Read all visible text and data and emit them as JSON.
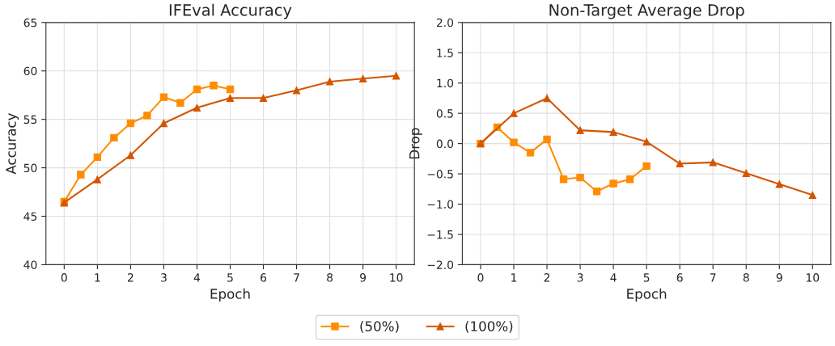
{
  "chart_data": [
    {
      "type": "line",
      "title": "IFEval Accuracy",
      "xlabel": "Epoch",
      "ylabel": "Accuracy",
      "xlim": [
        -0.55,
        10.55
      ],
      "xticks": [
        0,
        1,
        2,
        3,
        4,
        5,
        6,
        7,
        8,
        9,
        10
      ],
      "ylim": [
        40,
        65
      ],
      "yticks": [
        40,
        45,
        50,
        55,
        60,
        65
      ],
      "grid": true,
      "legend": "bottom",
      "series": [
        {
          "name": "(50%)",
          "color": "#ff8c00",
          "marker": "square",
          "x": [
            0,
            0.5,
            1,
            1.5,
            2,
            2.5,
            3,
            3.5,
            4,
            4.5,
            5
          ],
          "values": [
            46.5,
            49.3,
            51.1,
            53.1,
            54.6,
            55.4,
            57.3,
            56.7,
            58.1,
            58.5,
            58.1
          ]
        },
        {
          "name": "(100%)",
          "color": "#d45500",
          "marker": "triangle",
          "x": [
            0,
            1,
            2,
            3,
            4,
            5,
            6,
            7,
            8,
            9,
            10
          ],
          "values": [
            46.4,
            48.8,
            51.3,
            54.6,
            56.2,
            57.2,
            57.2,
            58.0,
            58.9,
            59.2,
            59.5
          ]
        }
      ]
    },
    {
      "type": "line",
      "title": "Non-Target Average Drop",
      "xlabel": "Epoch",
      "ylabel": "Drop",
      "xlim": [
        -0.55,
        10.55
      ],
      "xticks": [
        0,
        1,
        2,
        3,
        4,
        5,
        6,
        7,
        8,
        9,
        10
      ],
      "ylim": [
        -2.0,
        2.0
      ],
      "yticks": [
        {
          "value": -2.0,
          "label": "−2.0"
        },
        {
          "value": -1.5,
          "label": "−1.5"
        },
        {
          "value": -1.0,
          "label": "−1.0"
        },
        {
          "value": -0.5,
          "label": "−0.5"
        },
        {
          "value": 0.0,
          "label": "0.0"
        },
        {
          "value": 0.5,
          "label": "0.5"
        },
        {
          "value": 1.0,
          "label": "1.0"
        },
        {
          "value": 1.5,
          "label": "1.5"
        },
        {
          "value": 2.0,
          "label": "2.0"
        }
      ],
      "grid": true,
      "series": [
        {
          "color": "#ff8c00",
          "marker": "square",
          "x": [
            0,
            0.5,
            1,
            1.5,
            2,
            2.5,
            3,
            3.5,
            4,
            4.5,
            5
          ],
          "values": [
            0.0,
            0.27,
            0.02,
            -0.15,
            0.07,
            -0.59,
            -0.56,
            -0.79,
            -0.66,
            -0.59,
            -0.37
          ]
        },
        {
          "color": "#d45500",
          "marker": "triangle",
          "x": [
            0,
            1,
            2,
            3,
            4,
            5,
            6,
            7,
            8,
            9,
            10
          ],
          "values": [
            0.0,
            0.5,
            0.75,
            0.22,
            0.19,
            0.03,
            -0.33,
            -0.31,
            -0.49,
            -0.67,
            -0.85
          ]
        }
      ]
    }
  ]
}
